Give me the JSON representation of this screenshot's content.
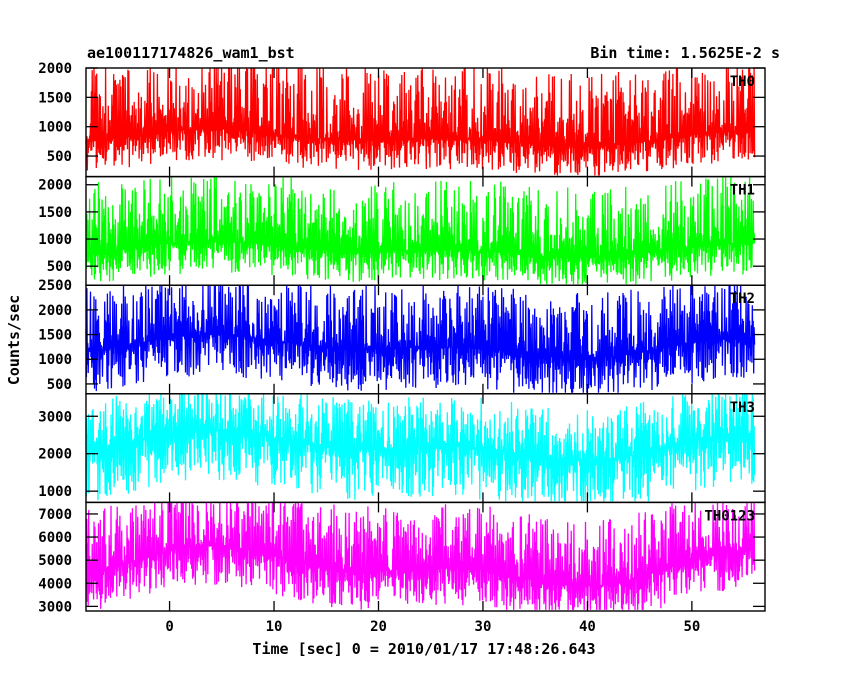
{
  "header": {
    "source_id": "ae100117174826_wam1_bst",
    "bin_time": "Bin time: 1.5625E-2 s"
  },
  "chart_data": {
    "type": "line",
    "title": "ae100117174826_wam1_bst",
    "subtitle": "Bin time: 1.5625E-2 s",
    "xlabel": "Time [sec] 0 = 2010/01/17 17:48:26.643",
    "ylabel": "Counts/sec",
    "xlim": [
      -8,
      57
    ],
    "x_ticks": [
      0,
      10,
      20,
      30,
      40,
      50
    ],
    "x_tick_labels": [
      "0",
      "10",
      "20",
      "30",
      "40",
      "50"
    ],
    "x_data_range": [
      -8,
      56
    ],
    "grid": false,
    "panels": [
      {
        "name": "TH0",
        "color": "#ff0000",
        "ylim": [
          150,
          2000
        ],
        "yticks": [
          500,
          1000,
          1500,
          2000
        ],
        "ytick_labels": [
          "500",
          "1000",
          "1500",
          "2000"
        ],
        "baseline": 800,
        "low": 300,
        "high": 2000
      },
      {
        "name": "TH1",
        "color": "#00ff00",
        "ylim": [
          150,
          2150
        ],
        "yticks": [
          500,
          1000,
          1500,
          2000
        ],
        "ytick_labels": [
          "500",
          "1000",
          "1500",
          "2000"
        ],
        "baseline": 800,
        "low": 250,
        "high": 2050
      },
      {
        "name": "TH2",
        "color": "#0000ff",
        "ylim": [
          300,
          2500
        ],
        "yticks": [
          500,
          1000,
          1500,
          2000,
          2500
        ],
        "ytick_labels": [
          "500",
          "1000",
          "1500",
          "2000",
          "2500"
        ],
        "baseline": 1250,
        "low": 450,
        "high": 2500
      },
      {
        "name": "TH3",
        "color": "#00ffff",
        "ylim": [
          700,
          3600
        ],
        "yticks": [
          1000,
          2000,
          3000
        ],
        "ytick_labels": [
          "1000",
          "2000",
          "3000"
        ],
        "baseline": 2200,
        "low": 900,
        "high": 3500
      },
      {
        "name": "TH0123",
        "color": "#ff00ff",
        "ylim": [
          2800,
          7500
        ],
        "yticks": [
          3000,
          4000,
          5000,
          6000,
          7000
        ],
        "ytick_labels": [
          "3000",
          "4000",
          "5000",
          "6000",
          "7000"
        ],
        "baseline": 4700,
        "low": 3100,
        "high": 7400
      }
    ]
  }
}
